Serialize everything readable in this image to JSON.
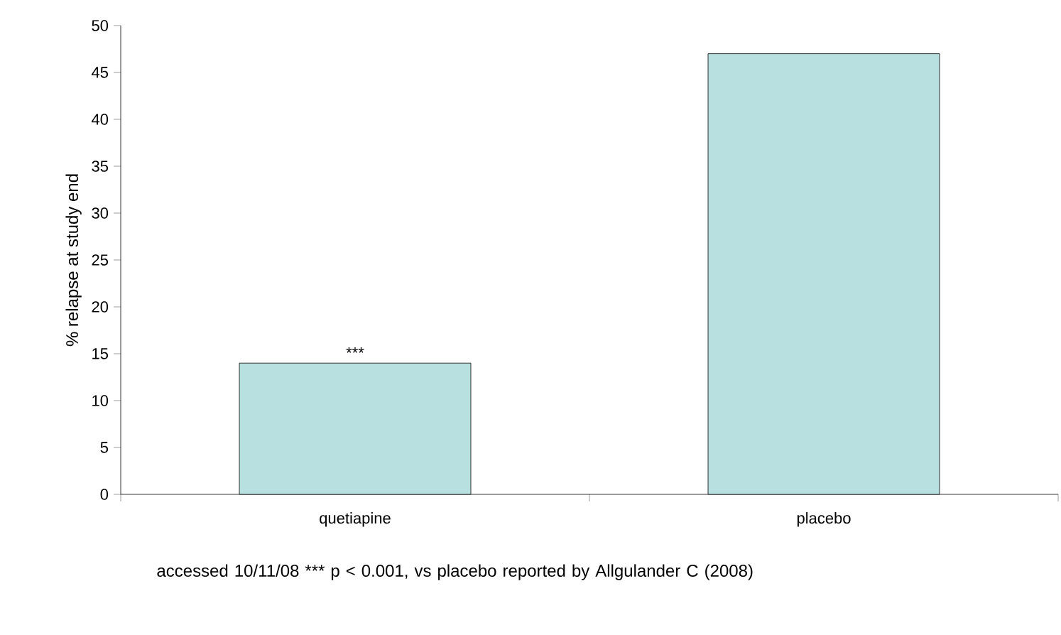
{
  "chart_data": {
    "type": "bar",
    "categories": [
      "quetiapine",
      "placebo"
    ],
    "values": [
      14,
      47
    ],
    "color": "#b8e0e0",
    "ylabel": "% relapse at study end",
    "ylim": [
      0,
      50
    ],
    "yticks": [
      0,
      5,
      10,
      15,
      20,
      25,
      30,
      35,
      40,
      45,
      50
    ],
    "grid": false,
    "annotations": [
      {
        "text": "***",
        "x": "quetiapine",
        "y": 14
      },
      "accessed 10/11/08 *** p < 0.001, vs placebo reported by Allgulander C (2008)"
    ]
  }
}
